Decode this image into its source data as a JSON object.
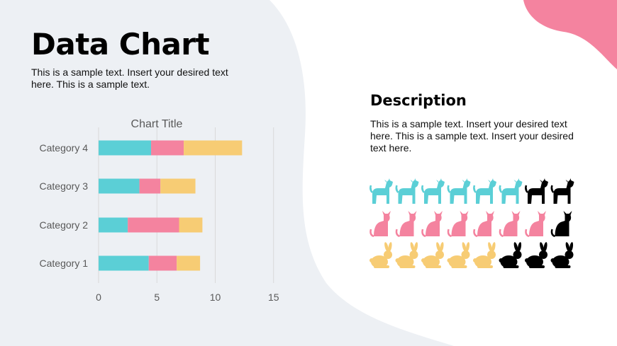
{
  "slide": {
    "title": "Data Chart",
    "subtitle": "This is a sample text. Insert your desired text here. This is a sample text."
  },
  "description": {
    "heading": "Description",
    "body": "This is a sample text. Insert your desired text here. This is a sample text. Insert your desired text here."
  },
  "colors": {
    "teal": "#5BCFD6",
    "pink": "#F4839F",
    "yellow": "#F7CC74",
    "black": "#000000",
    "panel": "#EDF0F4",
    "accent": "#F4839F"
  },
  "chart_data": {
    "type": "bar",
    "orientation": "horizontal",
    "stacked": true,
    "title": "Chart Title",
    "categories": [
      "Category 1",
      "Category 2",
      "Category 3",
      "Category 4"
    ],
    "series": [
      {
        "values": [
          4.3,
          2.5,
          3.5,
          4.5
        ],
        "color": "#5BCFD6"
      },
      {
        "values": [
          2.4,
          4.4,
          1.8,
          2.8
        ],
        "color": "#F4839F"
      },
      {
        "values": [
          2.0,
          2.0,
          3.0,
          5.0
        ],
        "color": "#F7CC74"
      }
    ],
    "xlim": [
      0,
      15
    ],
    "xticks": [
      "0",
      "5",
      "10",
      "15"
    ],
    "grid": true,
    "legend": "none"
  },
  "icon_rows": [
    {
      "icon": "dog-icon",
      "colored": 6,
      "black": 2,
      "color": "#5BCFD6"
    },
    {
      "icon": "cat-icon",
      "colored": 7,
      "black": 1,
      "color": "#F4839F"
    },
    {
      "icon": "rabbit-icon",
      "colored": 5,
      "black": 3,
      "color": "#F7CC74"
    }
  ]
}
